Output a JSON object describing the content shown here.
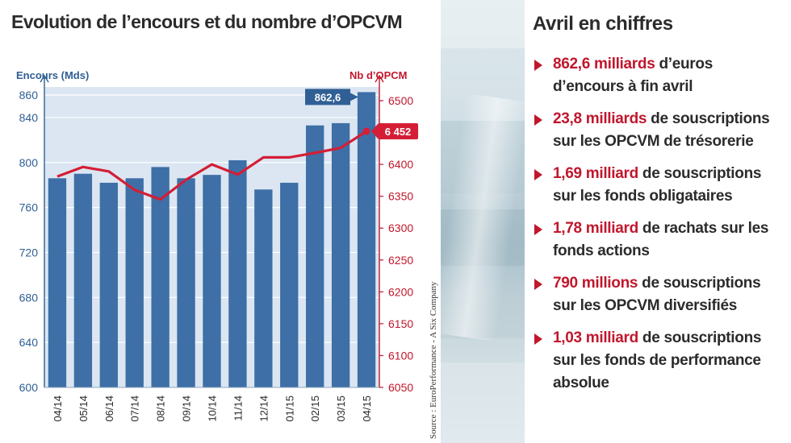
{
  "title": "Evolution de l’encours et du nombre d’OPCVM",
  "source": "Source : EuroPerformance - A Six Company",
  "chart_data": {
    "type": "bar",
    "categories": [
      "04/14",
      "05/14",
      "06/14",
      "07/14",
      "08/14",
      "09/14",
      "10/14",
      "11/14",
      "12/14",
      "01/15",
      "02/15",
      "03/15",
      "04/15"
    ],
    "series": [
      {
        "name": "Encours (Mds)",
        "type": "bar",
        "axis": "left",
        "values": [
          786,
          790,
          782,
          786,
          796,
          786,
          789,
          802,
          776,
          782,
          833,
          835,
          862.6
        ]
      },
      {
        "name": "Nb d’OPCM",
        "type": "line",
        "axis": "right",
        "values": [
          6381,
          6396,
          6389,
          6360,
          6345,
          6376,
          6400,
          6384,
          6411,
          6411,
          6418,
          6426,
          6452
        ]
      }
    ],
    "ylabel": "Encours (Mds)",
    "y2label": "Nb d’OPCM",
    "ylim": [
      600,
      860
    ],
    "yticks": [
      600,
      640,
      680,
      720,
      760,
      800,
      840,
      860
    ],
    "y2lim": [
      6050,
      6500
    ],
    "y2ticks": [
      6050,
      6100,
      6150,
      6200,
      6250,
      6300,
      6350,
      6400,
      6450,
      6500
    ],
    "callouts": {
      "bar_label": "862,6",
      "line_label": "6 452"
    },
    "colors": {
      "bar": "#3e6fa6",
      "line": "#d41e35",
      "left_axis": "#2f5f94",
      "right_axis": "#c0172d",
      "plot_bg": "#dbe6f2"
    }
  },
  "panel": {
    "title": "Avril en chiffres",
    "items": [
      {
        "highlight": "862,6 milliards",
        "text": " d’euros d’encours à fin avril"
      },
      {
        "highlight": "23,8 milliards",
        "text": " de souscriptions sur les OPCVM de trésorerie"
      },
      {
        "highlight": "1,69 milliard",
        "text": " de souscriptions sur les fonds obligataires"
      },
      {
        "highlight": "1,78 milliard",
        "text": " de rachats sur les fonds actions"
      },
      {
        "highlight": "790 millions",
        "text": " de souscriptions sur les OPCVM diversifiés"
      },
      {
        "highlight": "1,03 milliard",
        "text": " de souscriptions sur les fonds de performance absolue"
      }
    ]
  }
}
